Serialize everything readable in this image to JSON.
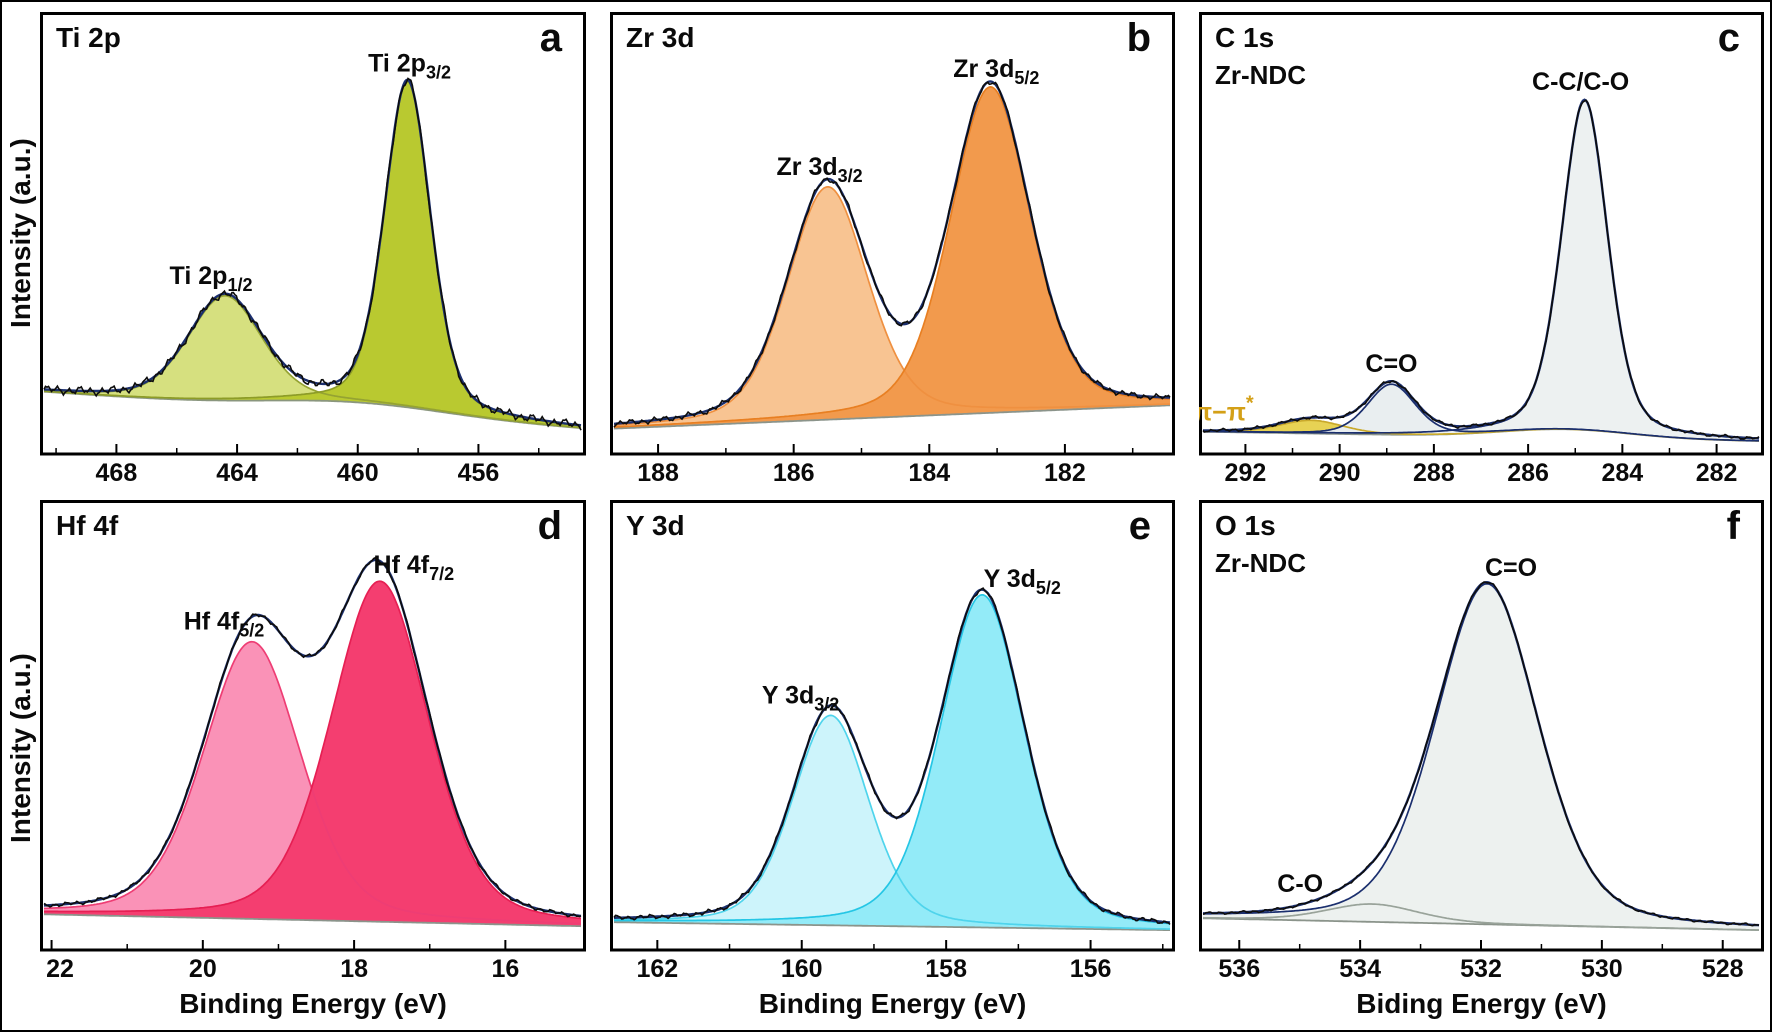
{
  "chart_data": [
    {
      "type": "area",
      "panel_letter": "a",
      "title": "Ti 2p",
      "subtitle": "",
      "xlabel": "",
      "ylabel": "Intensity (a.u.)",
      "xlim": [
        470.4,
        452.6
      ],
      "x_axis_reversed": true,
      "x_ticks": [
        468,
        464,
        460,
        456
      ],
      "ylim": [
        0,
        1
      ],
      "grid": false,
      "envelope_color": "#1b2f6e",
      "raw_color": "#0d0d0d",
      "noise": 0.013,
      "baseline": {
        "left": 0.145,
        "right": 0.05,
        "color": "#8a967e",
        "hump": {
          "center": 460.0,
          "fwhm": 7.0,
          "height": 0.028
        }
      },
      "peaks": [
        {
          "label": {
            "base": "Ti 2p",
            "sub": "1/2"
          },
          "center": 464.4,
          "fwhm": 2.9,
          "height": 0.27,
          "fill": "#d6e07f",
          "line": "#95a332",
          "label_dx": -14,
          "label_dy": -12
        },
        {
          "label": {
            "base": "Ti 2p",
            "sub": "3/2"
          },
          "center": 458.35,
          "fwhm": 1.8,
          "height": 0.84,
          "fill": "#b9c930",
          "line": "#8d9c28",
          "label_dx": 2,
          "label_dy": -10
        }
      ]
    },
    {
      "type": "area",
      "panel_letter": "b",
      "title": "Zr 3d",
      "subtitle": "",
      "xlabel": "",
      "ylabel": "",
      "xlim": [
        188.65,
        180.45
      ],
      "x_axis_reversed": true,
      "x_ticks": [
        188,
        186,
        184,
        182
      ],
      "ylim": [
        0,
        1
      ],
      "grid": false,
      "envelope_color": "#1b2f6e",
      "raw_color": "#0d0d0d",
      "noise": 0.009,
      "baseline": {
        "left": 0.05,
        "right": 0.11,
        "color": "#8b948b"
      },
      "peaks": [
        {
          "label": {
            "base": "Zr 3d",
            "sub": "3/2"
          },
          "center": 185.5,
          "fwhm": 1.4,
          "height": 0.6,
          "fill": "#f8c492",
          "line": "#ef9040",
          "label_dx": -8,
          "label_dy": -12
        },
        {
          "label": {
            "base": "Zr 3d",
            "sub": "5/2"
          },
          "center": 183.1,
          "fwhm": 1.4,
          "height": 0.84,
          "fill": "#f29a4d",
          "line": "#e87f22",
          "label_dx": 6,
          "label_dy": -10
        }
      ]
    },
    {
      "type": "area",
      "panel_letter": "c",
      "title": "C 1s",
      "subtitle": "Zr-NDC",
      "xlabel": "",
      "ylabel": "",
      "xlim": [
        292.9,
        281.1
      ],
      "x_axis_reversed": true,
      "x_ticks": [
        292,
        290,
        288,
        286,
        284,
        282
      ],
      "ylim": [
        0,
        1
      ],
      "grid": false,
      "envelope_color": "#1b2f6e",
      "raw_color": "#0d0d0d",
      "noise": 0.005,
      "baseline": {
        "left": 0.042,
        "right": 0.018,
        "color": "#8b948b",
        "hump": {
          "center": 285.2,
          "fwhm": 3.2,
          "height": 0.022
        }
      },
      "peaks": [
        {
          "label": {
            "base": "π−π",
            "sup": "*"
          },
          "label_color": "#d4a017",
          "center": 290.6,
          "fwhm": 1.6,
          "height": 0.034,
          "fill": "#e7d254",
          "line": "#c9a92b",
          "label_dx": -88,
          "label_dy": 0
        },
        {
          "label": {
            "base": "C=O"
          },
          "center": 288.9,
          "fwhm": 1.2,
          "height": 0.13,
          "fill": "#e9eef0",
          "line": "#1b2f6e",
          "label_dx": 0,
          "label_dy": -12
        },
        {
          "label": {
            "base": "C-C/C-O"
          },
          "center": 284.8,
          "fwhm": 1.15,
          "height": 0.85,
          "fill": "#edf1f1",
          "line": "#1b2f6e",
          "label_dx": -4,
          "label_dy": -10
        }
      ]
    },
    {
      "type": "area",
      "panel_letter": "d",
      "title": "Hf 4f",
      "subtitle": "",
      "xlabel": "Binding Energy (eV)",
      "ylabel": "Intensity (a.u.)",
      "xlim": [
        22.1,
        15.0
      ],
      "x_axis_reversed": true,
      "x_ticks": [
        22,
        20,
        18,
        16
      ],
      "ylim": [
        0,
        1
      ],
      "grid": false,
      "envelope_color": "#1b2f6e",
      "raw_color": "#0d0d0d",
      "noise": 0.006,
      "baseline": {
        "left": 0.075,
        "right": 0.045,
        "color": "#8b948b"
      },
      "peaks": [
        {
          "label": {
            "base": "Hf 4f",
            "sub": "5/2"
          },
          "center": 19.35,
          "fwhm": 1.52,
          "height": 0.7,
          "fill": "#fa92b7",
          "line": "#ee3d74",
          "label_dx": -28,
          "label_dy": -12
        },
        {
          "label": {
            "base": "Hf 4f",
            "sub": "7/2"
          },
          "center": 17.66,
          "fwhm": 1.52,
          "height": 0.86,
          "fill": "#f43e70",
          "line": "#e61f53",
          "label_dx": 34,
          "label_dy": -8
        }
      ]
    },
    {
      "type": "area",
      "panel_letter": "e",
      "title": "Y 3d",
      "subtitle": "",
      "xlabel": "Binding Energy (eV)",
      "ylabel": "",
      "xlim": [
        162.6,
        154.9
      ],
      "x_axis_reversed": true,
      "x_ticks": [
        162,
        160,
        158,
        156
      ],
      "ylim": [
        0,
        1
      ],
      "grid": false,
      "envelope_color": "#1b2f6e",
      "raw_color": "#0d0d0d",
      "noise": 0.007,
      "baseline": {
        "left": 0.055,
        "right": 0.035,
        "color": "#8b948b"
      },
      "peaks": [
        {
          "label": {
            "base": "Y 3d",
            "sub": "3/2"
          },
          "center": 159.6,
          "fwhm": 1.25,
          "height": 0.53,
          "fill": "#cdf4fb",
          "line": "#4fd4ec",
          "label_dx": -30,
          "label_dy": -12
        },
        {
          "label": {
            "base": "Y 3d",
            "sub": "5/2"
          },
          "center": 157.5,
          "fwhm": 1.38,
          "height": 0.84,
          "fill": "#93ebf8",
          "line": "#25c6e5",
          "label_dx": 40,
          "label_dy": -8
        }
      ]
    },
    {
      "type": "area",
      "panel_letter": "f",
      "title": "O 1s",
      "subtitle": "Zr-NDC",
      "xlabel": "Biding Energy (eV)",
      "ylabel": "",
      "xlim": [
        536.6,
        527.4
      ],
      "x_axis_reversed": true,
      "x_ticks": [
        536,
        534,
        532,
        530,
        528
      ],
      "ylim": [
        0,
        1
      ],
      "grid": false,
      "envelope_color": "#1b2f6e",
      "raw_color": "#0d0d0d",
      "noise": 0.004,
      "baseline": {
        "left": 0.065,
        "right": 0.035,
        "color": "#8b948b"
      },
      "peaks": [
        {
          "label": {
            "base": "C-O"
          },
          "center": 533.8,
          "fwhm": 1.8,
          "height": 0.045,
          "fill": "#e9ede9",
          "line": "#99a39a",
          "label_dx": -72,
          "label_dy": -12
        },
        {
          "label": {
            "base": "C=O"
          },
          "center": 531.9,
          "fwhm": 2.0,
          "height": 0.86,
          "fill": "#edf1ef",
          "line": "#1b2f6e",
          "label_dx": 24,
          "label_dy": -8
        }
      ]
    }
  ]
}
